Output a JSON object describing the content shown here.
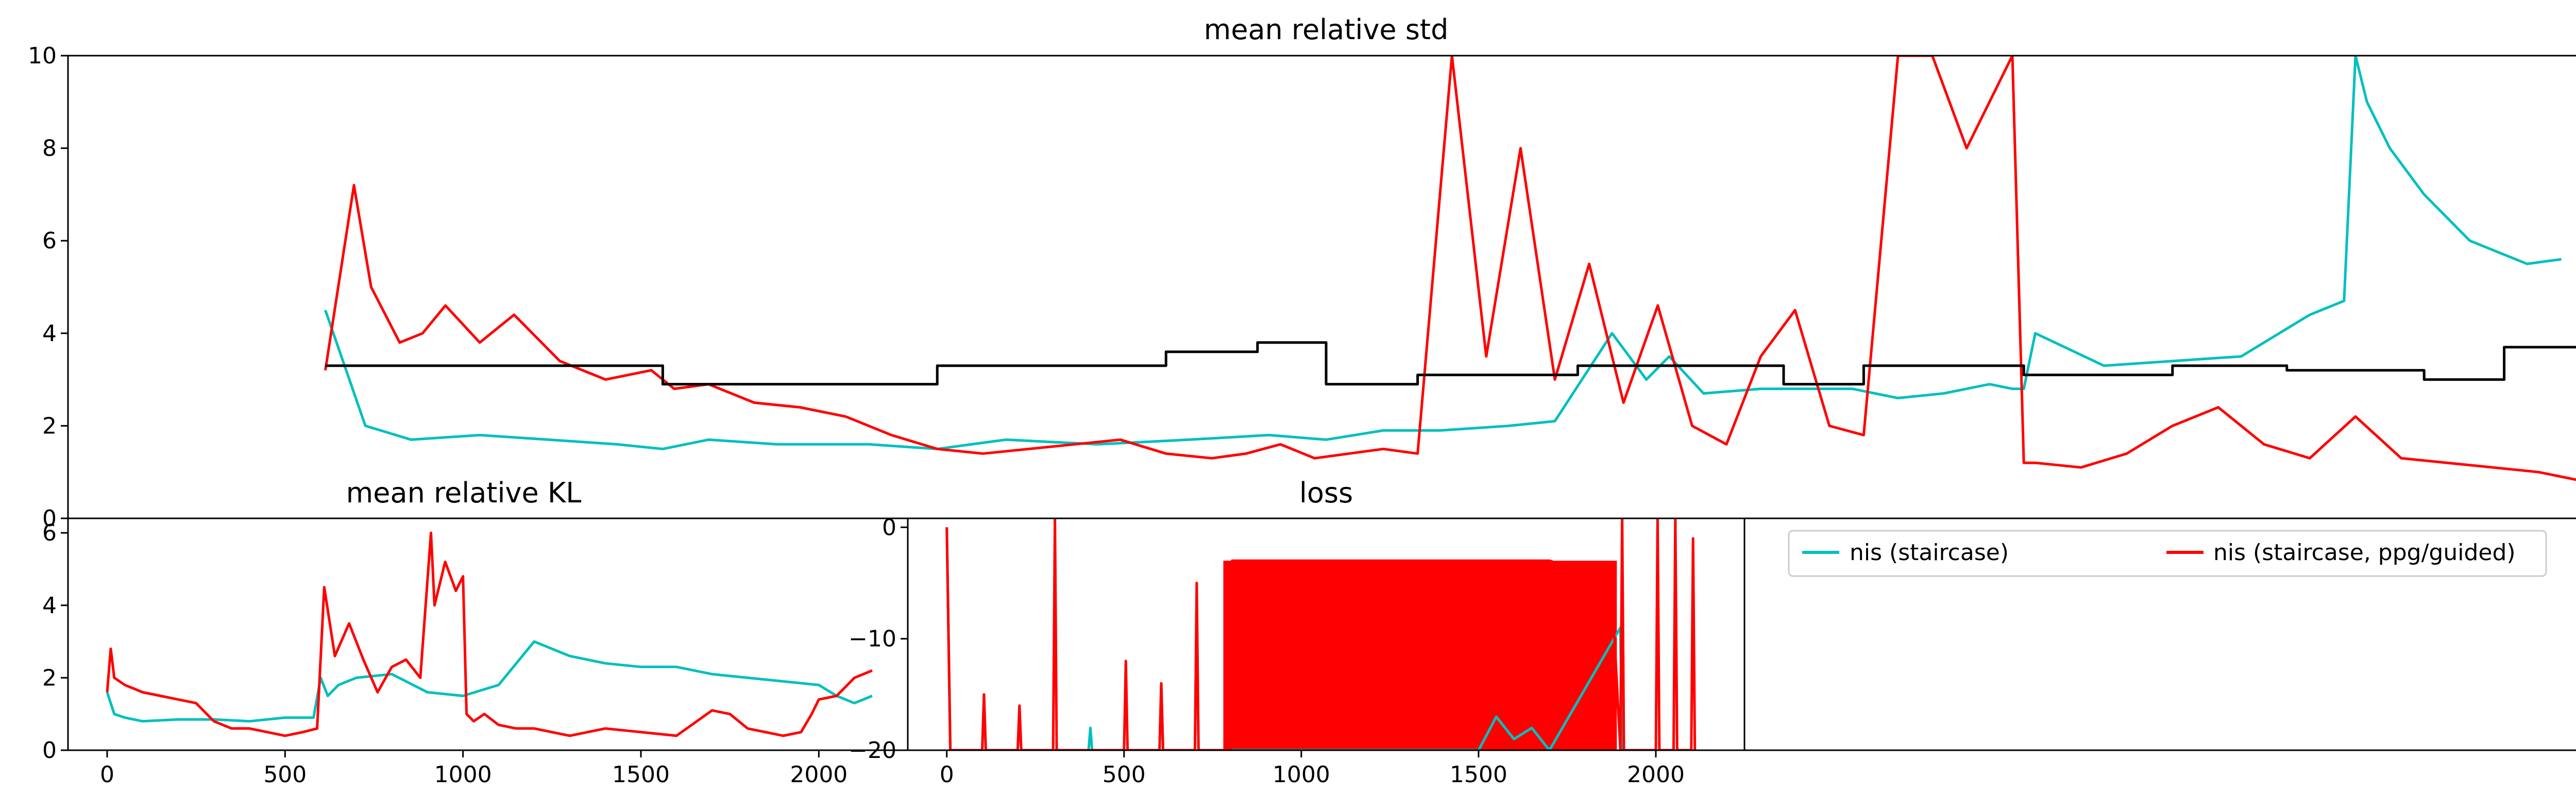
{
  "colors": {
    "cyan": "#00BFBF",
    "red": "#FF0000",
    "black": "#000000"
  },
  "chart_data": [
    {
      "id": "std",
      "type": "line",
      "title": "mean relative std",
      "xlabel": "",
      "ylabel": "",
      "xlim": [
        0,
        2200
      ],
      "ylim": [
        0,
        10
      ],
      "yticks": [
        {
          "v": 0,
          "label": "0"
        },
        {
          "v": 2,
          "label": "2"
        },
        {
          "v": 4,
          "label": "4"
        },
        {
          "v": 6,
          "label": "6"
        },
        {
          "v": 8,
          "label": "8"
        },
        {
          "v": 10,
          "label": "10"
        }
      ],
      "xticks": [],
      "grid": false,
      "series": [
        {
          "name": "nis (staircase)",
          "color": "#00BFBF",
          "x": [
            225,
            260,
            300,
            360,
            420,
            480,
            520,
            560,
            620,
            700,
            760,
            820,
            900,
            980,
            1050,
            1100,
            1150,
            1200,
            1260,
            1300,
            1350,
            1380,
            1400,
            1430,
            1480,
            1540,
            1560,
            1600,
            1640,
            1680,
            1700,
            1710,
            1720,
            1780,
            1840,
            1900,
            1960,
            1990,
            2000,
            2010,
            2030,
            2060,
            2100,
            2150,
            2180
          ],
          "y": [
            4.5,
            2.0,
            1.7,
            1.8,
            1.7,
            1.6,
            1.5,
            1.7,
            1.6,
            1.6,
            1.5,
            1.7,
            1.6,
            1.7,
            1.8,
            1.7,
            1.9,
            1.9,
            2.0,
            2.1,
            4.0,
            3.0,
            3.5,
            2.7,
            2.8,
            2.8,
            2.8,
            2.6,
            2.7,
            2.9,
            2.8,
            2.8,
            4.0,
            3.3,
            3.4,
            3.5,
            4.4,
            4.7,
            10.0,
            9.0,
            8.0,
            7.0,
            6.0,
            5.5,
            5.6
          ]
        },
        {
          "name": "nis (staircase, ppg/guided)",
          "color": "#FF0000",
          "x": [
            225,
            250,
            265,
            290,
            310,
            330,
            360,
            390,
            430,
            470,
            510,
            530,
            560,
            600,
            640,
            680,
            720,
            760,
            800,
            840,
            880,
            920,
            960,
            1000,
            1030,
            1060,
            1090,
            1120,
            1150,
            1180,
            1210,
            1240,
            1270,
            1300,
            1330,
            1360,
            1390,
            1420,
            1450,
            1480,
            1510,
            1540,
            1570,
            1600,
            1630,
            1660,
            1700,
            1710,
            1720,
            1760,
            1800,
            1840,
            1880,
            1920,
            1960,
            2000,
            2040,
            2080,
            2120,
            2160,
            2200
          ],
          "y": [
            3.2,
            7.2,
            5.0,
            3.8,
            4.0,
            4.6,
            3.8,
            4.4,
            3.4,
            3.0,
            3.2,
            2.8,
            2.9,
            2.5,
            2.4,
            2.2,
            1.8,
            1.5,
            1.4,
            1.5,
            1.6,
            1.7,
            1.4,
            1.3,
            1.4,
            1.6,
            1.3,
            1.4,
            1.5,
            1.4,
            10.0,
            3.5,
            8.0,
            3.0,
            5.5,
            2.5,
            4.6,
            2.0,
            1.6,
            3.5,
            4.5,
            2.0,
            1.8,
            10.0,
            10.0,
            8.0,
            10.0,
            1.2,
            1.2,
            1.1,
            1.4,
            2.0,
            2.4,
            1.6,
            1.3,
            2.2,
            1.3,
            1.2,
            1.1,
            1.0,
            0.8
          ]
        },
        {
          "name": "",
          "color": "#000000",
          "x": [
            225,
            520,
            520,
            760,
            760,
            960,
            960,
            1040,
            1040,
            1100,
            1100,
            1180,
            1180,
            1320,
            1320,
            1500,
            1500,
            1570,
            1570,
            1710,
            1710,
            1840,
            1840,
            1940,
            1940,
            2060,
            2060,
            2130,
            2130,
            2240
          ],
          "y": [
            3.3,
            3.3,
            2.9,
            2.9,
            3.3,
            3.3,
            3.6,
            3.6,
            3.8,
            3.8,
            2.9,
            2.9,
            3.1,
            3.1,
            3.3,
            3.3,
            2.9,
            2.9,
            3.3,
            3.3,
            3.1,
            3.1,
            3.3,
            3.3,
            3.2,
            3.2,
            3.0,
            3.0,
            3.7,
            3.7
          ]
        }
      ]
    },
    {
      "id": "kl",
      "type": "line",
      "title": "mean relative KL",
      "xlabel": "",
      "ylabel": "",
      "xlim": [
        -110,
        2250
      ],
      "ylim": [
        0,
        6.4
      ],
      "yticks": [
        {
          "v": 0,
          "label": "0"
        },
        {
          "v": 2,
          "label": "2"
        },
        {
          "v": 4,
          "label": "4"
        },
        {
          "v": 6,
          "label": "6"
        }
      ],
      "xticks": [
        {
          "v": 0,
          "label": "0"
        },
        {
          "v": 500,
          "label": "500"
        },
        {
          "v": 1000,
          "label": "1000"
        },
        {
          "v": 1500,
          "label": "1500"
        },
        {
          "v": 2000,
          "label": "2000"
        }
      ],
      "grid": false,
      "series": [
        {
          "name": "nis (staircase)",
          "color": "#00BFBF",
          "x": [
            0,
            20,
            50,
            100,
            200,
            300,
            400,
            500,
            580,
            600,
            620,
            650,
            700,
            800,
            900,
            1000,
            1100,
            1200,
            1300,
            1400,
            1500,
            1600,
            1700,
            1800,
            1900,
            2000,
            2050,
            2100,
            2150
          ],
          "y": [
            1.6,
            1.0,
            0.9,
            0.8,
            0.85,
            0.85,
            0.8,
            0.9,
            0.9,
            2.0,
            1.5,
            1.8,
            2.0,
            2.1,
            1.6,
            1.5,
            1.8,
            3.0,
            2.6,
            2.4,
            2.3,
            2.3,
            2.1,
            2.0,
            1.9,
            1.8,
            1.5,
            1.3,
            1.5
          ]
        },
        {
          "name": "nis (staircase, ppg/guided)",
          "color": "#FF0000",
          "x": [
            0,
            10,
            20,
            50,
            100,
            150,
            200,
            250,
            300,
            350,
            400,
            450,
            500,
            550,
            590,
            610,
            640,
            680,
            720,
            760,
            800,
            840,
            880,
            910,
            920,
            950,
            980,
            1000,
            1010,
            1030,
            1060,
            1100,
            1150,
            1200,
            1300,
            1400,
            1500,
            1600,
            1700,
            1750,
            1800,
            1850,
            1900,
            1950,
            1980,
            2000,
            2050,
            2100,
            2150
          ],
          "y": [
            1.6,
            2.8,
            2.0,
            1.8,
            1.6,
            1.5,
            1.4,
            1.3,
            0.8,
            0.6,
            0.6,
            0.5,
            0.4,
            0.5,
            0.6,
            4.5,
            2.6,
            3.5,
            2.5,
            1.6,
            2.3,
            2.5,
            2.0,
            6.0,
            4.0,
            5.2,
            4.4,
            4.8,
            1.0,
            0.8,
            1.0,
            0.7,
            0.6,
            0.6,
            0.4,
            0.6,
            0.5,
            0.4,
            1.1,
            1.0,
            0.6,
            0.5,
            0.4,
            0.5,
            1.0,
            1.4,
            1.5,
            2.0,
            2.2
          ]
        }
      ]
    },
    {
      "id": "loss",
      "type": "line",
      "title": "loss",
      "xlabel": "",
      "ylabel": "",
      "xlim": [
        -110,
        2250
      ],
      "ylim": [
        -20,
        0.8
      ],
      "yticks": [
        {
          "v": 0,
          "label": "0"
        },
        {
          "v": -10,
          "label": "−10"
        },
        {
          "v": -20,
          "label": "−20"
        }
      ],
      "xticks": [
        {
          "v": 0,
          "label": "0"
        },
        {
          "v": 500,
          "label": "500"
        },
        {
          "v": 1000,
          "label": "1000"
        },
        {
          "v": 1500,
          "label": "1500"
        },
        {
          "v": 2000,
          "label": "2000"
        }
      ],
      "grid": false,
      "series": [
        {
          "name": "nis (staircase)",
          "color": "#00BFBF",
          "x": [
            0,
            10,
            20,
            100,
            105,
            110,
            200,
            205,
            210,
            400,
            405,
            410,
            600,
            605,
            610,
            700,
            705,
            710,
            800,
            1500,
            1550,
            1600,
            1650,
            1700,
            1900,
            1905
          ],
          "y": [
            0,
            -20,
            -20,
            -20,
            -15,
            -20,
            -20,
            -17,
            -20,
            -20,
            -18,
            -20,
            -20,
            -14,
            -20,
            -20,
            -6,
            -20,
            -20,
            -20,
            -17,
            -19,
            -18,
            -20,
            -9,
            -20
          ]
        },
        {
          "name": "nis (staircase, ppg/guided)",
          "color": "#FF0000",
          "x": [
            0,
            10,
            20,
            100,
            105,
            110,
            200,
            205,
            210,
            300,
            305,
            310,
            500,
            505,
            510,
            600,
            605,
            610,
            700,
            705,
            710,
            800,
            805,
            1000,
            1500,
            1700,
            1800,
            1880,
            1900,
            1905,
            1910,
            2000,
            2005,
            2010,
            2050,
            2055,
            2060,
            2100,
            2105,
            2110
          ],
          "y": [
            0,
            -20,
            -20,
            -20,
            -15,
            -20,
            -20,
            -16,
            -20,
            -20,
            0.8,
            -20,
            -20,
            -12,
            -20,
            -20,
            -14,
            -20,
            -20,
            -5,
            -20,
            -20,
            -3,
            -3,
            -3,
            -3,
            -4,
            -8,
            -20,
            0.8,
            -20,
            -20,
            0.8,
            -20,
            -20,
            0.8,
            -20,
            -20,
            -1,
            -20
          ]
        }
      ],
      "dense_band": {
        "x0": 780,
        "x1": 1890,
        "y_top": -3,
        "y_bottom": -20
      },
      "legend_position": "right of plot",
      "legend": [
        {
          "label": "nis (staircase)",
          "color": "#00BFBF"
        },
        {
          "label": "nis (staircase, ppg/guided)",
          "color": "#FF0000"
        }
      ]
    }
  ]
}
